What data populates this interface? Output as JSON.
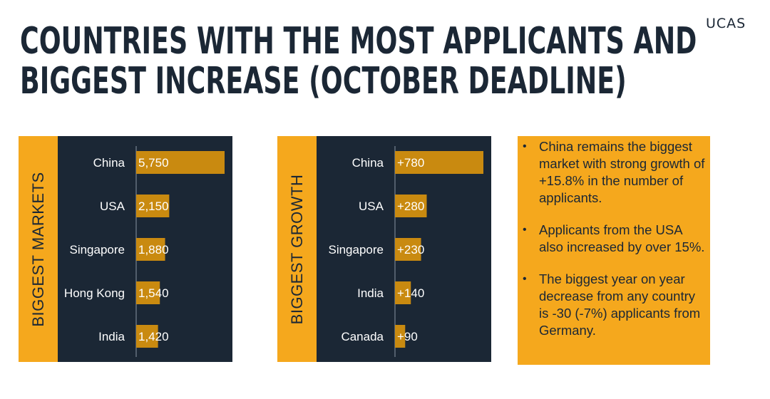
{
  "logo": "UCAS",
  "title": [
    "COUNTRIES WITH THE MOST APPLICANTS AND",
    "BIGGEST INCREASE (OCTOBER DEADLINE)"
  ],
  "colors": {
    "navy": "#1b2735",
    "amber": "#f5a81d",
    "bar": "#c98a10"
  },
  "chart_data": [
    {
      "type": "bar",
      "orientation": "horizontal",
      "title": "BIGGEST MARKETS",
      "categories": [
        "China",
        "USA",
        "Singapore",
        "Hong Kong",
        "India"
      ],
      "values": [
        5750,
        2150,
        1880,
        1540,
        1420
      ],
      "value_labels": [
        "5,750",
        "2,150",
        "1,880",
        "1,540",
        "1,420"
      ],
      "xlim": [
        0,
        5750
      ],
      "grid": false
    },
    {
      "type": "bar",
      "orientation": "horizontal",
      "title": "BIGGEST GROWTH",
      "categories": [
        "China",
        "USA",
        "Singapore",
        "India",
        "Canada"
      ],
      "values": [
        780,
        280,
        230,
        140,
        90
      ],
      "value_labels": [
        "+780",
        "+280",
        "+230",
        "+140",
        "+90"
      ],
      "xlim": [
        0,
        780
      ],
      "grid": false
    }
  ],
  "notes": [
    "China remains the biggest market with strong growth of +15.8% in the number of applicants.",
    "Applicants from the USA also increased by over 15%.",
    "The biggest year on year decrease from any country is -30 (-7%) applicants from Germany."
  ]
}
